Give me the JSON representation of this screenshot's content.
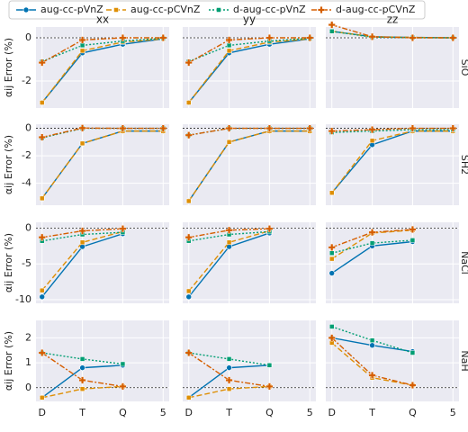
{
  "chart_data": [
    {
      "type": "line",
      "title": "xx",
      "ylabel": "αij Error (%)",
      "categories": [
        "D",
        "T",
        "Q",
        "5"
      ],
      "ylim": [
        -3.25,
        0.5
      ],
      "yticks": [
        -2,
        0
      ],
      "hline": 0,
      "grid": true,
      "series": [
        {
          "name": "aug-cc-pVnZ",
          "color": "#0173b2",
          "values": [
            -3.0,
            -0.7,
            -0.3,
            -0.05
          ]
        },
        {
          "name": "aug-cc-pCVnZ",
          "color": "#de8f05",
          "values": [
            -3.0,
            -0.6,
            -0.2,
            -0.05
          ]
        },
        {
          "name": "d-aug-cc-pVnZ",
          "color": "#029e73",
          "values": [
            -1.1,
            -0.35,
            -0.15,
            -0.02
          ]
        },
        {
          "name": "d-aug-cc-pCVnZ",
          "color": "#d55e00",
          "values": [
            -1.15,
            -0.1,
            0.0,
            0.0
          ]
        }
      ]
    },
    {
      "type": "line",
      "title": "yy",
      "categories": [
        "D",
        "T",
        "Q",
        "5"
      ],
      "ylim": [
        -3.25,
        0.5
      ],
      "yticks": [
        -2,
        0
      ],
      "hline": 0,
      "grid": true,
      "series": [
        {
          "color": "#0173b2",
          "values": [
            -3.0,
            -0.7,
            -0.3,
            -0.05
          ]
        },
        {
          "color": "#de8f05",
          "values": [
            -3.0,
            -0.6,
            -0.2,
            -0.05
          ]
        },
        {
          "color": "#029e73",
          "values": [
            -1.1,
            -0.35,
            -0.15,
            -0.02
          ]
        },
        {
          "color": "#d55e00",
          "values": [
            -1.15,
            -0.1,
            0.0,
            0.0
          ]
        }
      ]
    },
    {
      "type": "line",
      "title": "zz",
      "row_label": "SiO",
      "categories": [
        "D",
        "T",
        "Q",
        "5"
      ],
      "ylim": [
        -3.25,
        0.5
      ],
      "yticks": [
        -2,
        0
      ],
      "hline": 0,
      "grid": true,
      "series": [
        {
          "color": "#0173b2",
          "values": [
            0.3,
            0.05,
            0.02,
            0.0
          ]
        },
        {
          "color": "#de8f05",
          "values": [
            0.3,
            0.05,
            0.02,
            0.0
          ]
        },
        {
          "color": "#029e73",
          "values": [
            0.3,
            0.03,
            0.01,
            0.0
          ]
        },
        {
          "color": "#d55e00",
          "values": [
            0.6,
            0.05,
            0.0,
            0.0
          ]
        }
      ]
    },
    {
      "type": "line",
      "ylabel": "αij Error (%)",
      "categories": [
        "D",
        "T",
        "Q",
        "5"
      ],
      "ylim": [
        -5.6,
        0.3
      ],
      "yticks": [
        -4,
        -2,
        0
      ],
      "hline": 0,
      "grid": true,
      "series": [
        {
          "color": "#0173b2",
          "values": [
            -5.1,
            -1.1,
            -0.2,
            -0.2
          ]
        },
        {
          "color": "#de8f05",
          "values": [
            -5.1,
            -1.1,
            -0.2,
            -0.2
          ]
        },
        {
          "color": "#029e73",
          "values": [
            -0.7,
            0.0,
            0.0,
            0.0
          ]
        },
        {
          "color": "#d55e00",
          "values": [
            -0.65,
            0.02,
            0.0,
            0.0
          ]
        }
      ]
    },
    {
      "type": "line",
      "categories": [
        "D",
        "T",
        "Q",
        "5"
      ],
      "ylim": [
        -5.6,
        0.3
      ],
      "yticks": [
        -4,
        -2,
        0
      ],
      "hline": 0,
      "grid": true,
      "series": [
        {
          "color": "#0173b2",
          "values": [
            -5.3,
            -1.0,
            -0.2,
            -0.2
          ]
        },
        {
          "color": "#de8f05",
          "values": [
            -5.3,
            -1.0,
            -0.2,
            -0.2
          ]
        },
        {
          "color": "#029e73",
          "values": [
            -0.5,
            0.0,
            0.0,
            0.0
          ]
        },
        {
          "color": "#d55e00",
          "values": [
            -0.5,
            0.0,
            0.0,
            0.0
          ]
        }
      ]
    },
    {
      "type": "line",
      "row_label": "SH2",
      "categories": [
        "D",
        "T",
        "Q",
        "5"
      ],
      "ylim": [
        -5.6,
        0.3
      ],
      "yticks": [
        -4,
        -2,
        0
      ],
      "hline": 0,
      "grid": true,
      "series": [
        {
          "color": "#0173b2",
          "values": [
            -4.7,
            -1.2,
            -0.2,
            -0.2
          ]
        },
        {
          "color": "#de8f05",
          "values": [
            -4.7,
            -0.9,
            -0.2,
            -0.2
          ]
        },
        {
          "color": "#029e73",
          "values": [
            -0.3,
            -0.2,
            -0.1,
            -0.1
          ]
        },
        {
          "color": "#d55e00",
          "values": [
            -0.2,
            -0.1,
            0.0,
            0.0
          ]
        }
      ]
    },
    {
      "type": "line",
      "ylabel": "αij Error (%)",
      "categories": [
        "D",
        "T",
        "Q",
        "5"
      ],
      "ylim": [
        -10.5,
        0.8
      ],
      "yticks": [
        -10,
        -5,
        0
      ],
      "hline": 0,
      "grid": true,
      "series": [
        {
          "color": "#0173b2",
          "values": [
            -9.6,
            -2.6,
            -0.8,
            null
          ]
        },
        {
          "color": "#de8f05",
          "values": [
            -8.7,
            -2.0,
            -0.5,
            null
          ]
        },
        {
          "color": "#029e73",
          "values": [
            -1.8,
            -0.9,
            -0.6,
            null
          ]
        },
        {
          "color": "#d55e00",
          "values": [
            -1.3,
            -0.4,
            -0.1,
            null
          ]
        }
      ]
    },
    {
      "type": "line",
      "categories": [
        "D",
        "T",
        "Q",
        "5"
      ],
      "ylim": [
        -10.5,
        0.8
      ],
      "yticks": [
        -10,
        -5,
        0
      ],
      "hline": 0,
      "grid": true,
      "series": [
        {
          "color": "#0173b2",
          "values": [
            -9.6,
            -2.6,
            -0.7,
            null
          ]
        },
        {
          "color": "#de8f05",
          "values": [
            -8.8,
            -2.0,
            -0.4,
            null
          ]
        },
        {
          "color": "#029e73",
          "values": [
            -1.8,
            -0.9,
            -0.5,
            null
          ]
        },
        {
          "color": "#d55e00",
          "values": [
            -1.3,
            -0.3,
            -0.1,
            null
          ]
        }
      ]
    },
    {
      "type": "line",
      "row_label": "NaCl",
      "categories": [
        "D",
        "T",
        "Q",
        "5"
      ],
      "ylim": [
        -10.5,
        0.8
      ],
      "yticks": [
        -10,
        -5,
        0
      ],
      "hline": 0,
      "grid": true,
      "series": [
        {
          "color": "#0173b2",
          "values": [
            -6.3,
            -2.5,
            -1.9,
            null
          ]
        },
        {
          "color": "#de8f05",
          "values": [
            -4.3,
            -0.7,
            -0.3,
            null
          ]
        },
        {
          "color": "#029e73",
          "values": [
            -3.5,
            -2.1,
            -1.7,
            null
          ]
        },
        {
          "color": "#d55e00",
          "values": [
            -2.7,
            -0.6,
            -0.2,
            null
          ]
        }
      ]
    },
    {
      "type": "line",
      "ylabel": "αij Error (%)",
      "categories": [
        "D",
        "T",
        "Q",
        "5"
      ],
      "ylim": [
        -0.55,
        2.7
      ],
      "yticks": [
        0,
        1,
        2
      ],
      "hline": 0,
      "grid": true,
      "series": [
        {
          "color": "#0173b2",
          "values": [
            -0.4,
            0.8,
            0.9,
            null
          ]
        },
        {
          "color": "#de8f05",
          "values": [
            -0.4,
            -0.05,
            0.05,
            null
          ]
        },
        {
          "color": "#029e73",
          "values": [
            1.4,
            1.15,
            0.95,
            null
          ]
        },
        {
          "color": "#d55e00",
          "values": [
            1.4,
            0.3,
            0.05,
            null
          ]
        }
      ]
    },
    {
      "type": "line",
      "categories": [
        "D",
        "T",
        "Q",
        "5"
      ],
      "ylim": [
        -0.55,
        2.7
      ],
      "yticks": [
        0,
        1,
        2
      ],
      "hline": 0,
      "grid": true,
      "series": [
        {
          "color": "#0173b2",
          "values": [
            -0.4,
            0.8,
            0.9,
            null
          ]
        },
        {
          "color": "#de8f05",
          "values": [
            -0.4,
            -0.05,
            0.05,
            null
          ]
        },
        {
          "color": "#029e73",
          "values": [
            1.4,
            1.15,
            0.9,
            null
          ]
        },
        {
          "color": "#d55e00",
          "values": [
            1.4,
            0.3,
            0.05,
            null
          ]
        }
      ]
    },
    {
      "type": "line",
      "row_label": "NaH",
      "categories": [
        "D",
        "T",
        "Q",
        "5"
      ],
      "ylim": [
        -0.55,
        2.7
      ],
      "yticks": [
        0,
        1,
        2
      ],
      "hline": 0,
      "grid": true,
      "series": [
        {
          "color": "#0173b2",
          "values": [
            2.0,
            1.7,
            1.45,
            null
          ]
        },
        {
          "color": "#de8f05",
          "values": [
            1.8,
            0.4,
            0.1,
            null
          ]
        },
        {
          "color": "#029e73",
          "values": [
            2.45,
            1.9,
            1.4,
            null
          ]
        },
        {
          "color": "#d55e00",
          "values": [
            2.0,
            0.5,
            0.1,
            null
          ]
        }
      ]
    }
  ]
}
